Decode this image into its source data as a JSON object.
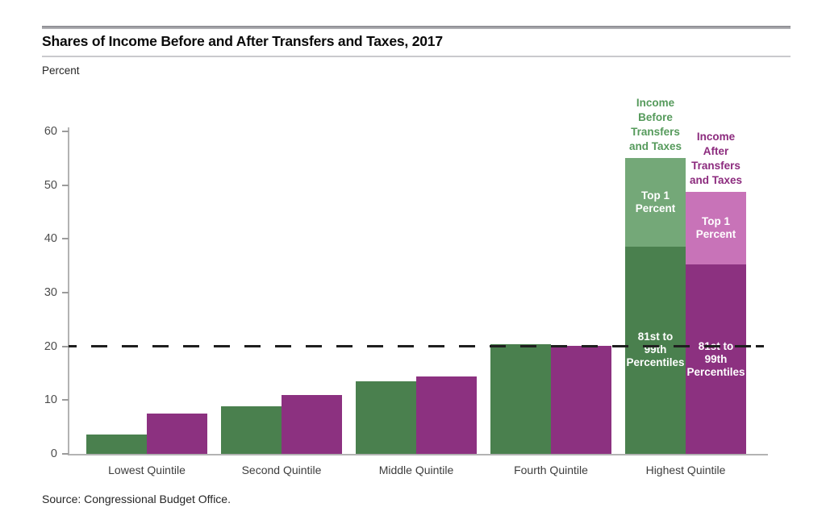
{
  "header": {
    "title": "Shares of Income Before and After Transfers and Taxes, 2017"
  },
  "source": "Source: Congressional Budget Office.",
  "chart_data": {
    "type": "bar",
    "title": "Shares of Income Before and After Transfers and Taxes, 2017",
    "xlabel": "",
    "ylabel": "Percent",
    "ylim": [
      0,
      60
    ],
    "yticks": [
      0,
      10,
      20,
      30,
      40,
      50,
      60
    ],
    "grid": false,
    "reference_line_y": 20,
    "categories": [
      "Lowest Quintile",
      "Second Quintile",
      "Middle Quintile",
      "Fourth Quintile",
      "Highest Quintile"
    ],
    "series": [
      {
        "name": "Income Before Transfers and Taxes",
        "annotation_lines": "Income\nBefore\nTransfers\nand Taxes",
        "color": "#4a804e",
        "light_color": "#74a878",
        "annotation_color": "#559a5b",
        "values": [
          3.6,
          8.8,
          13.5,
          20.4,
          55.1
        ],
        "highest_quintile_stack": {
          "p81_99": 38.6,
          "top1": 16.5
        }
      },
      {
        "name": "Income After Transfers and Taxes",
        "annotation_lines": "Income\nAfter\nTransfers\nand Taxes",
        "color": "#8c3180",
        "light_color": "#c873b8",
        "annotation_color": "#8c2b7e",
        "values": [
          7.5,
          10.9,
          14.4,
          20.1,
          48.8
        ],
        "highest_quintile_stack": {
          "p81_99": 35.2,
          "top1": 13.6
        }
      }
    ],
    "segment_labels": {
      "top1": "Top 1\nPercent",
      "p81_99": "81st to\n99th\nPercentiles"
    }
  }
}
